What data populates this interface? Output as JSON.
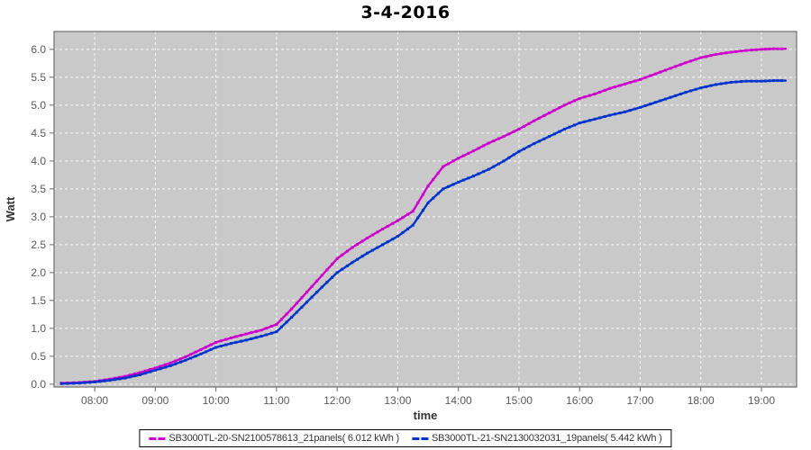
{
  "title": "3-4-2016",
  "chart_data": {
    "type": "line",
    "title": "3-4-2016",
    "xlabel": "time",
    "ylabel": "Watt",
    "grid": true,
    "legend_position": "bottom",
    "plot_bg": "#c9c9c9",
    "grid_color": "#ffffff",
    "border_color": "#6e6e6e",
    "tick_color": "#666666",
    "x_ticks": [
      "08:00",
      "09:00",
      "10:00",
      "11:00",
      "12:00",
      "13:00",
      "14:00",
      "15:00",
      "16:00",
      "17:00",
      "18:00",
      "19:00"
    ],
    "x_tick_hours": [
      8,
      9,
      10,
      11,
      12,
      13,
      14,
      15,
      16,
      17,
      18,
      19
    ],
    "y_ticks": [
      0.0,
      0.5,
      1.0,
      1.5,
      2.0,
      2.5,
      3.0,
      3.5,
      4.0,
      4.5,
      5.0,
      5.5,
      6.0
    ],
    "ylim": [
      -0.05,
      6.32
    ],
    "xlim_hours": [
      7.33,
      19.58
    ],
    "x_hours": [
      7.45,
      7.75,
      8.0,
      8.25,
      8.5,
      8.75,
      9.0,
      9.25,
      9.5,
      9.75,
      10.0,
      10.25,
      10.5,
      10.75,
      11.0,
      11.25,
      11.5,
      11.75,
      12.0,
      12.25,
      12.5,
      12.75,
      13.0,
      13.25,
      13.5,
      13.75,
      14.0,
      14.25,
      14.5,
      14.75,
      15.0,
      15.25,
      15.5,
      15.75,
      16.0,
      16.25,
      16.5,
      16.75,
      17.0,
      17.25,
      17.5,
      17.75,
      18.0,
      18.25,
      18.5,
      18.75,
      19.0,
      19.2,
      19.4
    ],
    "series": [
      {
        "name": "SB3000TL-20-SN2100578613_21panels( 6.012 kWh )",
        "color": "#cc00cc",
        "total_kwh": "6.012",
        "values": [
          0.02,
          0.03,
          0.05,
          0.09,
          0.14,
          0.21,
          0.29,
          0.38,
          0.49,
          0.62,
          0.75,
          0.83,
          0.9,
          0.97,
          1.07,
          1.35,
          1.65,
          1.95,
          2.25,
          2.45,
          2.62,
          2.78,
          2.93,
          3.1,
          3.55,
          3.9,
          4.05,
          4.18,
          4.32,
          4.44,
          4.57,
          4.72,
          4.86,
          5.0,
          5.12,
          5.2,
          5.3,
          5.38,
          5.46,
          5.56,
          5.66,
          5.76,
          5.85,
          5.91,
          5.95,
          5.98,
          6.0,
          6.01,
          6.01
        ]
      },
      {
        "name": "SB3000TL-21-SN2130032031_19panels( 5.442 kWh )",
        "color": "#0033cc",
        "total_kwh": "5.442",
        "values": [
          0.01,
          0.02,
          0.04,
          0.07,
          0.11,
          0.17,
          0.25,
          0.33,
          0.43,
          0.54,
          0.66,
          0.73,
          0.79,
          0.86,
          0.94,
          1.2,
          1.47,
          1.74,
          2.0,
          2.18,
          2.35,
          2.5,
          2.65,
          2.85,
          3.25,
          3.5,
          3.62,
          3.73,
          3.85,
          4.0,
          4.17,
          4.31,
          4.44,
          4.57,
          4.68,
          4.75,
          4.82,
          4.88,
          4.96,
          5.05,
          5.14,
          5.23,
          5.31,
          5.37,
          5.41,
          5.43,
          5.43,
          5.44,
          5.44
        ]
      }
    ]
  }
}
